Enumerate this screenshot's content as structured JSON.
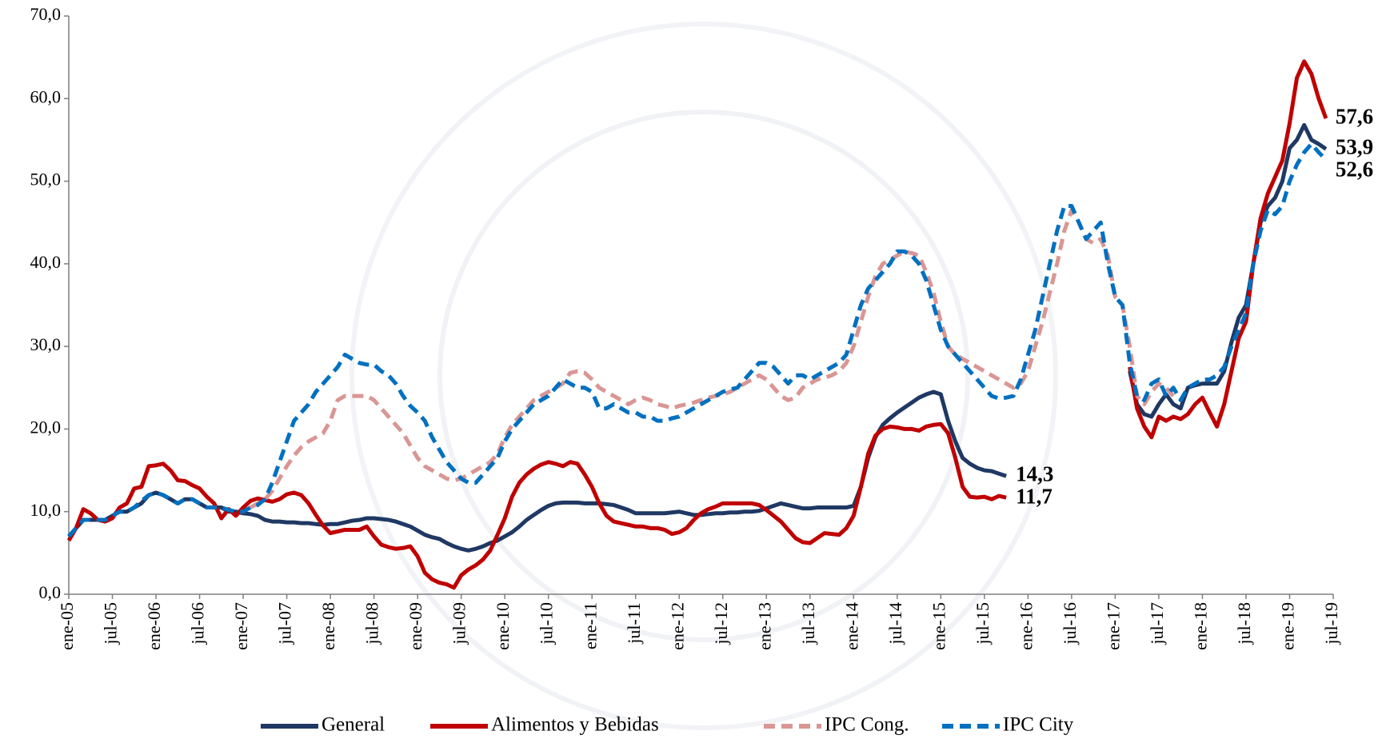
{
  "chart_data": {
    "type": "line",
    "categories": [
      "ene-05",
      null,
      null,
      null,
      null,
      null,
      "jul-05",
      null,
      null,
      null,
      null,
      null,
      "ene-06",
      null,
      null,
      null,
      null,
      null,
      "jul-06",
      null,
      null,
      null,
      null,
      null,
      "ene-07",
      null,
      null,
      null,
      null,
      null,
      "jul-07",
      null,
      null,
      null,
      null,
      null,
      "ene-08",
      null,
      null,
      null,
      null,
      null,
      "jul-08",
      null,
      null,
      null,
      null,
      null,
      "ene-09",
      null,
      null,
      null,
      null,
      null,
      "jul-09",
      null,
      null,
      null,
      null,
      null,
      "ene-10",
      null,
      null,
      null,
      null,
      null,
      "jul-10",
      null,
      null,
      null,
      null,
      null,
      "ene-11",
      null,
      null,
      null,
      null,
      null,
      "jul-11",
      null,
      null,
      null,
      null,
      null,
      "ene-12",
      null,
      null,
      null,
      null,
      null,
      "jul-12",
      null,
      null,
      null,
      null,
      null,
      "ene-13",
      null,
      null,
      null,
      null,
      null,
      "jul-13",
      null,
      null,
      null,
      null,
      null,
      "ene-14",
      null,
      null,
      null,
      null,
      null,
      "jul-14",
      null,
      null,
      null,
      null,
      null,
      "ene-15",
      null,
      null,
      null,
      null,
      null,
      "jul-15",
      null,
      null,
      null,
      null,
      null,
      "ene-16",
      null,
      null,
      null,
      null,
      null,
      "jul-16",
      null,
      null,
      null,
      null,
      null,
      "ene-17",
      null,
      null,
      null,
      null,
      null,
      "jul-17",
      null,
      null,
      null,
      null,
      null,
      "ene-18",
      null,
      null,
      null,
      null,
      null,
      "jul-18",
      null,
      null,
      null,
      null,
      null,
      "ene-19",
      null,
      null,
      null,
      null,
      null,
      "jul-19"
    ],
    "series": [
      {
        "name": "General",
        "color": "#1f3864",
        "dashed": false,
        "values": [
          7,
          8,
          9,
          9,
          9,
          9,
          9.5,
          10,
          10,
          10.5,
          11,
          12,
          12.3,
          12,
          11.5,
          11,
          11.5,
          11.5,
          11,
          10.5,
          10.5,
          10.5,
          10,
          10,
          9.8,
          9.7,
          9.5,
          9,
          8.8,
          8.8,
          8.7,
          8.7,
          8.6,
          8.6,
          8.5,
          8.4,
          8.5,
          8.5,
          8.7,
          8.9,
          9,
          9.2,
          9.2,
          9.1,
          9,
          8.8,
          8.5,
          8.2,
          7.7,
          7.2,
          6.9,
          6.7,
          6.2,
          5.8,
          5.5,
          5.3,
          5.5,
          5.8,
          6.2,
          6.5,
          7,
          7.5,
          8.2,
          9,
          9.6,
          10.2,
          10.7,
          11,
          11.1,
          11.1,
          11.1,
          11,
          11,
          11,
          10.9,
          10.8,
          10.5,
          10.2,
          9.8,
          9.8,
          9.8,
          9.8,
          9.8,
          9.9,
          10,
          9.8,
          9.6,
          9.6,
          9.7,
          9.8,
          9.8,
          9.9,
          9.9,
          10,
          10,
          10.1,
          10.4,
          10.7,
          11,
          10.8,
          10.6,
          10.4,
          10.4,
          10.5,
          10.5,
          10.5,
          10.5,
          10.5,
          10.7,
          13,
          16.5,
          19,
          20.5,
          21.3,
          22,
          22.6,
          23.2,
          23.8,
          24.2,
          24.5,
          24.2,
          21,
          18.5,
          16.5,
          15.8,
          15.3,
          15,
          14.9,
          14.6,
          14.3,
          null,
          null,
          null,
          null,
          null,
          null,
          null,
          null,
          null,
          null,
          null,
          null,
          null,
          null,
          null,
          null,
          27,
          23,
          21.8,
          21.5,
          23,
          24.2,
          23,
          22.5,
          25,
          25.3,
          25.5,
          25.5,
          25.5,
          27,
          30.5,
          33.5,
          35,
          40,
          45,
          47,
          48,
          50,
          54,
          55,
          56.8,
          55,
          54.5,
          53.9,
          null
        ],
        "value_labels": {
          "129": "14,3",
          "173": "53,9"
        }
      },
      {
        "name": "Alimentos y Bebidas",
        "color": "#c00000",
        "dashed": false,
        "values": [
          6.5,
          8,
          10.3,
          9.8,
          9,
          8.8,
          9.2,
          10.5,
          11,
          12.8,
          13,
          15.5,
          15.6,
          15.8,
          15,
          13.8,
          13.7,
          13.2,
          12.8,
          11.8,
          11,
          9.2,
          10.3,
          9.5,
          10.5,
          11.3,
          11.6,
          11.4,
          11.2,
          11.5,
          12.1,
          12.3,
          12,
          11,
          9.6,
          8.3,
          7.4,
          7.6,
          7.8,
          7.8,
          7.8,
          8.2,
          7,
          6,
          5.7,
          5.5,
          5.6,
          5.8,
          4.6,
          2.6,
          1.8,
          1.4,
          1.2,
          0.8,
          2.3,
          3,
          3.5,
          4.2,
          5.3,
          7.2,
          9.2,
          11.8,
          13.5,
          14.5,
          15.2,
          15.7,
          16,
          15.8,
          15.5,
          16,
          15.8,
          14.5,
          13,
          11,
          9.5,
          8.8,
          8.6,
          8.4,
          8.2,
          8.2,
          8,
          8,
          7.8,
          7.3,
          7.5,
          8,
          9,
          9.8,
          10.3,
          10.6,
          11,
          11,
          11,
          11,
          11,
          10.8,
          10.2,
          9.5,
          8.8,
          7.8,
          6.8,
          6.3,
          6.2,
          6.8,
          7.4,
          7.3,
          7.2,
          8,
          9.5,
          13,
          17,
          19.2,
          20,
          20.3,
          20.2,
          20,
          20,
          19.8,
          20.3,
          20.5,
          20.6,
          19.5,
          16.5,
          13,
          11.8,
          11.7,
          11.8,
          11.5,
          11.9,
          11.7,
          null,
          null,
          null,
          null,
          null,
          null,
          null,
          null,
          null,
          null,
          null,
          null,
          null,
          null,
          null,
          null,
          27.5,
          22.5,
          20.3,
          19,
          21.5,
          21,
          21.5,
          21.2,
          21.8,
          23,
          23.8,
          22,
          20.3,
          23,
          27,
          31,
          33,
          40,
          45.5,
          48.5,
          50.5,
          52.5,
          57,
          62.5,
          64.5,
          63,
          60,
          57.6,
          null
        ],
        "value_labels": {
          "129": "11,7",
          "173": "57,6"
        }
      },
      {
        "name": "IPC Cong.",
        "color": "#d99694",
        "dashed": true,
        "values": [
          null,
          null,
          null,
          null,
          null,
          null,
          null,
          null,
          null,
          null,
          null,
          null,
          null,
          null,
          null,
          null,
          null,
          null,
          null,
          null,
          null,
          null,
          null,
          null,
          null,
          10.5,
          11,
          11.5,
          12.5,
          14,
          15.5,
          16.8,
          17.8,
          18.5,
          19,
          19.5,
          21,
          23.5,
          24,
          24,
          24,
          24,
          23.5,
          22.5,
          21.5,
          20.5,
          19.5,
          18,
          16.5,
          15.5,
          15,
          14.5,
          14,
          13.8,
          14,
          14.5,
          15,
          15.5,
          16,
          17,
          19,
          20.5,
          21.5,
          22.5,
          23.5,
          24,
          24.5,
          25,
          25.5,
          26.8,
          27,
          26.8,
          26,
          25,
          24.5,
          24,
          23.5,
          23,
          23.5,
          23.8,
          23.5,
          23,
          22.8,
          22.5,
          22.8,
          23,
          23.2,
          23.5,
          23.8,
          24,
          24.2,
          24.5,
          25,
          25.5,
          26,
          26.5,
          26,
          25,
          24,
          23.5,
          23.8,
          25,
          25.5,
          26,
          26.2,
          26.5,
          27,
          28,
          30,
          33,
          36,
          38.5,
          40,
          40.5,
          41,
          41.5,
          41.3,
          41,
          39,
          36.5,
          33,
          30,
          29,
          28.5,
          28,
          27.5,
          27,
          26.5,
          26,
          25.5,
          25,
          25.5,
          27,
          30,
          33,
          36.5,
          40,
          44,
          46.5,
          45,
          43,
          42.5,
          43,
          41,
          36,
          35,
          30,
          24,
          23,
          24.5,
          25.5,
          25,
          24,
          null,
          null,
          null,
          null,
          null,
          null,
          null,
          null,
          null,
          null,
          null,
          null,
          null,
          null,
          null,
          null,
          null,
          null,
          null,
          null,
          null,
          null
        ]
      },
      {
        "name": "IPC City",
        "color": "#0070c0",
        "dashed": true,
        "values": [
          7,
          8,
          9,
          9,
          9,
          9,
          9.5,
          10,
          10,
          10.5,
          11.3,
          12,
          12.3,
          12,
          11.5,
          11,
          11.5,
          11.5,
          11,
          10.5,
          10.5,
          10.5,
          10.2,
          10,
          10,
          10.5,
          10.8,
          11.5,
          13.5,
          16,
          18.5,
          21,
          22,
          23,
          24.5,
          25.5,
          26.5,
          27.5,
          29,
          28.5,
          28,
          27.8,
          27.8,
          27,
          26.5,
          25.5,
          24,
          22.8,
          22,
          21,
          19,
          17.5,
          16,
          15,
          14,
          13.5,
          13.5,
          14.5,
          15.5,
          16.5,
          18.5,
          20,
          21,
          22,
          23,
          23.5,
          24,
          25,
          26,
          25.5,
          25,
          25,
          24.5,
          22.5,
          22.5,
          23,
          22.5,
          22,
          22,
          21.5,
          21.5,
          21,
          21,
          21.3,
          21.5,
          22,
          22.5,
          23,
          23.5,
          24,
          24.5,
          24.8,
          25,
          26,
          27,
          28,
          28,
          27.5,
          26.5,
          25.5,
          26.5,
          26.5,
          26,
          26.5,
          27,
          27.5,
          28,
          29,
          32,
          35,
          37,
          38,
          39,
          40,
          41.5,
          41.5,
          41,
          40,
          38,
          35,
          32,
          30,
          29,
          28,
          27,
          26,
          25,
          24,
          23.7,
          23.8,
          24,
          26,
          29,
          32,
          36,
          40,
          44,
          47,
          47,
          45,
          43,
          44,
          45,
          40,
          36,
          35,
          28,
          24,
          23.5,
          25.5,
          26,
          24,
          25,
          23.5,
          25,
          25.5,
          26,
          26,
          26.5,
          27.5,
          30,
          32,
          34,
          40,
          44,
          46.5,
          46,
          47,
          50,
          52,
          53.5,
          54.5,
          53.5,
          52.6,
          null
        ],
        "value_labels": {
          "173": "52,6"
        }
      }
    ],
    "ylim": [
      0,
      70
    ],
    "yticks": [
      {
        "value": 0,
        "label": "0,0"
      },
      {
        "value": 10,
        "label": "10,0"
      },
      {
        "value": 20,
        "label": "20,0"
      },
      {
        "value": 30,
        "label": "30,0"
      },
      {
        "value": 40,
        "label": "40,0"
      },
      {
        "value": 50,
        "label": "50,0"
      },
      {
        "value": 60,
        "label": "60,0"
      },
      {
        "value": 70,
        "label": "70,0"
      }
    ],
    "grid": false,
    "legend": "bottom"
  }
}
